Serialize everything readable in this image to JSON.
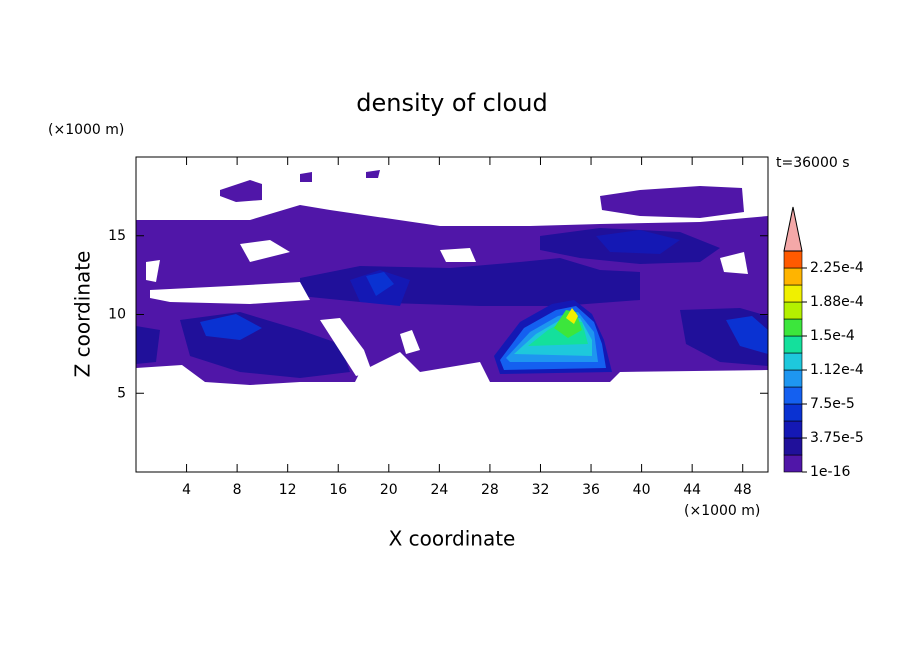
{
  "chart_data": {
    "type": "contour",
    "title": "density of cloud",
    "xlabel": "X coordinate",
    "ylabel": "Z coordinate",
    "x_unit": "(×1000 m)",
    "y_unit": "(×1000 m)",
    "annotation": "t=36000 s",
    "xlim": [
      0,
      50
    ],
    "ylim": [
      0,
      20
    ],
    "xticks": [
      4,
      8,
      12,
      16,
      20,
      24,
      28,
      32,
      36,
      40,
      44,
      48
    ],
    "yticks": [
      5,
      10,
      15
    ],
    "colorbar": {
      "bounds": [
        1e-16,
        1.875e-05,
        3.75e-05,
        5.625e-05,
        7.5e-05,
        9.375e-05,
        0.0001125,
        0.00013125,
        0.00015,
        0.00016875,
        0.0001875,
        0.00020625,
        0.000225,
        0.00024375
      ],
      "colors": [
        "#5016a8",
        "#20109a",
        "#1418b4",
        "#0a32d2",
        "#1460f0",
        "#1e96f0",
        "#1ec8dc",
        "#14e09c",
        "#3ce63c",
        "#b4f000",
        "#f0f000",
        "#ffb400",
        "#ff5a00"
      ],
      "ticks": [
        1e-16,
        {
          "value": 3.75e-05,
          "label": "3.75e-5"
        },
        {
          "value": 7.5e-05,
          "label": "7.5e-5"
        },
        {
          "value": 0.0001125,
          "label": "1.12e-4"
        },
        {
          "value": 0.00015,
          "label": "1.5e-4"
        },
        {
          "value": 0.0001875,
          "label": "1.88e-4"
        },
        {
          "value": 0.000225,
          "label": "2.25e-4"
        }
      ],
      "extend": "max",
      "extend_color": "#f4a8a8"
    }
  }
}
